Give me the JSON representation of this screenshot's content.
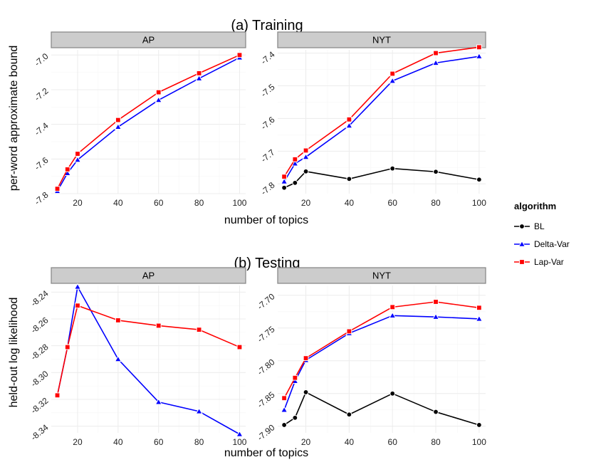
{
  "sections": [
    {
      "title": "(a) Training",
      "ylabel": "per-word approximate bound",
      "xlabel": "number of topics"
    },
    {
      "title": "(b) Testing",
      "ylabel": "held-out log likelihood",
      "xlabel": "number of topics"
    }
  ],
  "legend": {
    "title": "algorithm",
    "items": [
      {
        "name": "BL",
        "color": "#000000",
        "shape": "circle"
      },
      {
        "name": "Delta-Var",
        "color": "#0000ff",
        "shape": "triangle"
      },
      {
        "name": "Lap-Var",
        "color": "#ff0000",
        "shape": "square"
      }
    ]
  },
  "chart_data": [
    {
      "type": "line",
      "section": "(a) Training",
      "facet": "AP",
      "xlim": [
        7,
        103
      ],
      "ylim": [
        -7.8,
        -6.97
      ],
      "xticks": [
        20,
        40,
        60,
        80,
        100
      ],
      "yticks": [
        -7.8,
        -7.6,
        -7.4,
        -7.2,
        -7.0
      ],
      "yticklabels": [
        "-7.8",
        "-7.6",
        "-7.4",
        "-7.2",
        "-7.0"
      ],
      "series": [
        {
          "name": "Delta-Var",
          "x": [
            10,
            15,
            20,
            40,
            60,
            80,
            100
          ],
          "y": [
            -7.785,
            -7.682,
            -7.605,
            -7.415,
            -7.26,
            -7.135,
            -7.015
          ]
        },
        {
          "name": "Lap-Var",
          "x": [
            10,
            15,
            20,
            40,
            60,
            80,
            100
          ],
          "y": [
            -7.772,
            -7.66,
            -7.57,
            -7.375,
            -7.215,
            -7.105,
            -7.0
          ]
        }
      ]
    },
    {
      "type": "line",
      "section": "(a) Training",
      "facet": "NYT",
      "xlim": [
        7,
        103
      ],
      "ylim": [
        -7.83,
        -7.39
      ],
      "xticks": [
        20,
        40,
        60,
        80,
        100
      ],
      "yticks": [
        -7.8,
        -7.7,
        -7.6,
        -7.5,
        -7.4
      ],
      "yticklabels": [
        "-7.8",
        "-7.7",
        "-7.6",
        "-7.5",
        "-7.4"
      ],
      "series": [
        {
          "name": "BL",
          "x": [
            10,
            15,
            20,
            40,
            60,
            80,
            100
          ],
          "y": [
            -7.812,
            -7.797,
            -7.762,
            -7.785,
            -7.753,
            -7.763,
            -7.787
          ]
        },
        {
          "name": "Delta-Var",
          "x": [
            10,
            15,
            20,
            40,
            60,
            80,
            100
          ],
          "y": [
            -7.793,
            -7.738,
            -7.718,
            -7.622,
            -7.485,
            -7.43,
            -7.41
          ]
        },
        {
          "name": "Lap-Var",
          "x": [
            10,
            15,
            20,
            40,
            60,
            80,
            100
          ],
          "y": [
            -7.778,
            -7.725,
            -7.698,
            -7.603,
            -7.463,
            -7.4,
            -7.382
          ]
        }
      ]
    },
    {
      "type": "line",
      "section": "(b) Testing",
      "facet": "AP",
      "xlim": [
        7,
        103
      ],
      "ylim": [
        -8.345,
        -8.235
      ],
      "xticks": [
        20,
        40,
        60,
        80,
        100
      ],
      "yticks": [
        -8.34,
        -8.32,
        -8.3,
        -8.28,
        -8.26,
        -8.24
      ],
      "yticklabels": [
        "-8.34",
        "-8.32",
        "-8.30",
        "-8.28",
        "-8.26",
        "-8.24"
      ],
      "series": [
        {
          "name": "Delta-Var",
          "x": [
            10,
            15,
            20,
            40,
            60,
            80,
            100
          ],
          "y": [
            -8.317,
            -8.281,
            -8.236,
            -8.29,
            -8.322,
            -8.329,
            -8.346
          ]
        },
        {
          "name": "Lap-Var",
          "x": [
            10,
            15,
            20,
            40,
            60,
            80,
            100
          ],
          "y": [
            -8.317,
            -8.281,
            -8.25,
            -8.261,
            -8.265,
            -8.268,
            -8.281
          ]
        }
      ]
    },
    {
      "type": "line",
      "section": "(b) Testing",
      "facet": "NYT",
      "xlim": [
        7,
        103
      ],
      "ylim": [
        -7.91,
        -7.685
      ],
      "xticks": [
        20,
        40,
        60,
        80,
        100
      ],
      "yticks": [
        -7.9,
        -7.85,
        -7.8,
        -7.75,
        -7.7
      ],
      "yticklabels": [
        "-7.90",
        "-7.85",
        "-7.80",
        "-7.75",
        "-7.70"
      ],
      "series": [
        {
          "name": "BL",
          "x": [
            10,
            15,
            20,
            40,
            60,
            80,
            100
          ],
          "y": [
            -7.898,
            -7.887,
            -7.848,
            -7.882,
            -7.85,
            -7.878,
            -7.898
          ]
        },
        {
          "name": "Delta-Var",
          "x": [
            10,
            15,
            20,
            40,
            60,
            80,
            100
          ],
          "y": [
            -7.875,
            -7.831,
            -7.799,
            -7.758,
            -7.731,
            -7.733,
            -7.736
          ]
        },
        {
          "name": "Lap-Var",
          "x": [
            10,
            15,
            20,
            40,
            60,
            80,
            100
          ],
          "y": [
            -7.857,
            -7.826,
            -7.796,
            -7.755,
            -7.718,
            -7.71,
            -7.719
          ]
        }
      ]
    }
  ]
}
